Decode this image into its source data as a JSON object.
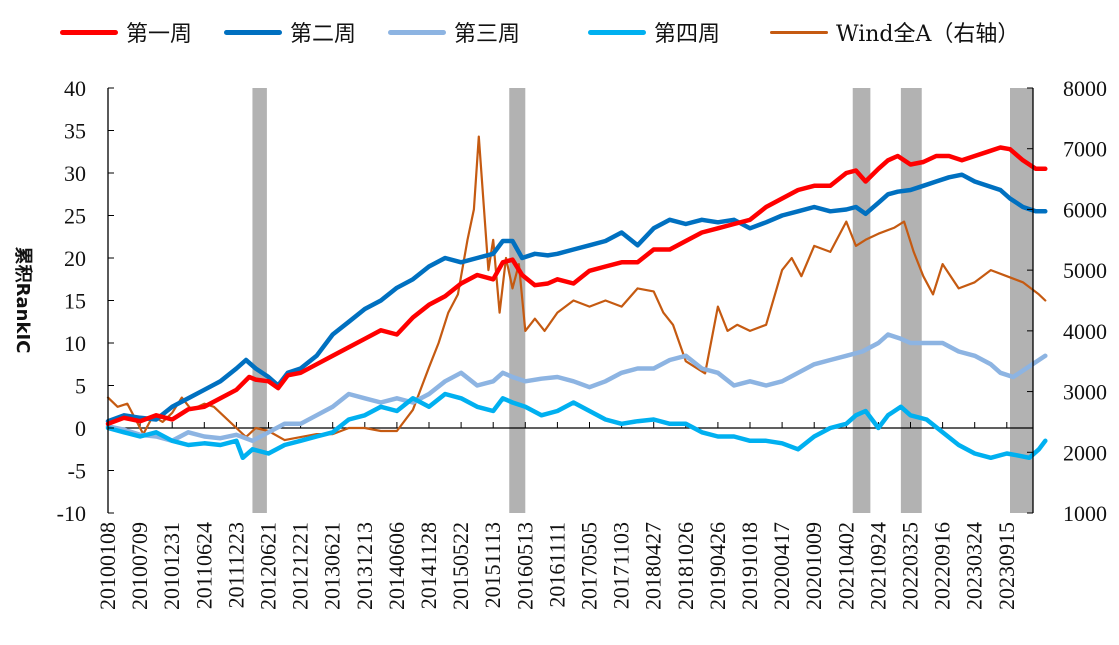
{
  "chart_data": {
    "type": "line",
    "title": "",
    "xlabel": "",
    "ylabel": "累积RankIC",
    "y2label": "",
    "ylim": [
      -10,
      40
    ],
    "y2lim": [
      1000,
      8000
    ],
    "yticks": [
      "40",
      "35",
      "30",
      "25",
      "20",
      "15",
      "10",
      "5",
      "0",
      "-5",
      "-10"
    ],
    "y2ticks": [
      "8000",
      "7000",
      "6000",
      "5000",
      "4000",
      "3000",
      "2000",
      "1000"
    ],
    "categories": [
      "20100108",
      "20100709",
      "20101231",
      "20110624",
      "20111223",
      "20120621",
      "20121221",
      "20130621",
      "20131213",
      "20140606",
      "20141128",
      "20150522",
      "20151113",
      "20160513",
      "20161111",
      "20170505",
      "20171103",
      "20180427",
      "20181026",
      "20190426",
      "20191018",
      "20200417",
      "20201009",
      "20210402",
      "20210924",
      "20220325",
      "20220916",
      "20230324",
      "20230915"
    ],
    "legend_position": "top",
    "grid": false,
    "shaded_periods": [
      {
        "start_index": 4.5,
        "end_index": 4.95
      },
      {
        "start_index": 12.5,
        "end_index": 13.0
      },
      {
        "start_index": 23.2,
        "end_index": 23.75
      },
      {
        "start_index": 24.7,
        "end_index": 25.35
      },
      {
        "start_index": 28.1,
        "end_index": 29.0
      }
    ],
    "shade_color": "#b2b2b2",
    "series": [
      {
        "name": "第一周",
        "axis": "left",
        "color": "#ff0000",
        "x": [
          0,
          0.5,
          1,
          1.5,
          2,
          2.5,
          3,
          3.5,
          4,
          4.4,
          4.6,
          5,
          5.3,
          5.6,
          6,
          6.5,
          7,
          7.5,
          8,
          8.5,
          9,
          9.5,
          10,
          10.5,
          11,
          11.5,
          12,
          12.3,
          12.6,
          12.9,
          13.3,
          13.7,
          14,
          14.5,
          15,
          15.5,
          16,
          16.5,
          17,
          17.5,
          18,
          18.5,
          19,
          19.5,
          20,
          20.5,
          21,
          21.5,
          22,
          22.5,
          23,
          23.3,
          23.6,
          24,
          24.3,
          24.6,
          25,
          25.4,
          25.8,
          26.2,
          26.6,
          27,
          27.4,
          27.8,
          28.1,
          28.5,
          28.9,
          29.2
        ],
        "values": [
          0.5,
          1.2,
          0.8,
          1.5,
          1.0,
          2.2,
          2.5,
          3.5,
          4.5,
          6.0,
          5.7,
          5.5,
          4.7,
          6.2,
          6.5,
          7.5,
          8.5,
          9.5,
          10.5,
          11.5,
          11.0,
          13.0,
          14.5,
          15.5,
          17.0,
          18.0,
          17.5,
          19.5,
          19.8,
          18.0,
          16.8,
          17.0,
          17.5,
          17.0,
          18.5,
          19.0,
          19.5,
          19.5,
          21.0,
          21.0,
          22.0,
          23.0,
          23.5,
          24.0,
          24.5,
          26.0,
          27.0,
          28.0,
          28.5,
          28.5,
          30.0,
          30.3,
          29.0,
          30.5,
          31.5,
          32.0,
          31.0,
          31.3,
          32.0,
          32.0,
          31.5,
          32.0,
          32.5,
          33.0,
          32.8,
          31.5,
          30.5,
          30.5
        ]
      },
      {
        "name": "第二周",
        "axis": "left",
        "color": "#0070c0",
        "x": [
          0,
          0.5,
          1,
          1.5,
          2,
          2.5,
          3,
          3.5,
          4,
          4.3,
          4.6,
          5,
          5.3,
          5.6,
          6,
          6.5,
          7,
          7.5,
          8,
          8.5,
          9,
          9.5,
          10,
          10.5,
          11,
          11.5,
          12,
          12.3,
          12.6,
          12.9,
          13.3,
          13.7,
          14,
          14.5,
          15,
          15.5,
          16,
          16.5,
          17,
          17.5,
          18,
          18.5,
          19,
          19.5,
          20,
          20.5,
          21,
          21.5,
          22,
          22.5,
          23,
          23.3,
          23.6,
          24,
          24.3,
          24.6,
          25,
          25.4,
          25.8,
          26.2,
          26.6,
          27,
          27.4,
          27.8,
          28.1,
          28.5,
          28.9,
          29.2
        ],
        "values": [
          0.8,
          1.5,
          1.2,
          1.0,
          2.5,
          3.5,
          4.5,
          5.5,
          7.0,
          8.0,
          7.0,
          6.0,
          5.0,
          6.5,
          7.0,
          8.5,
          11.0,
          12.5,
          14.0,
          15.0,
          16.5,
          17.5,
          19.0,
          20.0,
          19.5,
          20.0,
          20.5,
          22.0,
          22.0,
          20.0,
          20.5,
          20.3,
          20.5,
          21.0,
          21.5,
          22.0,
          23.0,
          21.5,
          23.5,
          24.5,
          24.0,
          24.5,
          24.2,
          24.5,
          23.5,
          24.2,
          25.0,
          25.5,
          26.0,
          25.5,
          25.7,
          26.0,
          25.2,
          26.5,
          27.5,
          27.8,
          28.0,
          28.5,
          29.0,
          29.5,
          29.8,
          29.0,
          28.5,
          28.0,
          27.0,
          26.0,
          25.5,
          25.5
        ]
      },
      {
        "name": "第三周",
        "axis": "left",
        "color": "#8db4e2",
        "x": [
          0,
          0.5,
          1,
          1.5,
          2,
          2.5,
          3,
          3.5,
          4,
          4.5,
          5,
          5.5,
          6,
          6.5,
          7,
          7.5,
          8,
          8.5,
          9,
          9.5,
          10,
          10.5,
          11,
          11.5,
          12,
          12.3,
          12.6,
          13,
          13.5,
          14,
          14.5,
          15,
          15.5,
          16,
          16.5,
          17,
          17.5,
          18,
          18.5,
          19,
          19.5,
          20,
          20.5,
          21,
          21.5,
          22,
          22.5,
          23,
          23.5,
          24,
          24.3,
          24.7,
          25,
          25.5,
          26,
          26.5,
          27,
          27.5,
          27.8,
          28.2,
          28.6,
          29.2
        ],
        "values": [
          0.2,
          -0.2,
          -0.8,
          -1.0,
          -1.5,
          -0.5,
          -1.0,
          -1.2,
          -0.8,
          -1.5,
          -0.5,
          0.5,
          0.5,
          1.5,
          2.5,
          4.0,
          3.5,
          3.0,
          3.5,
          3.0,
          4.0,
          5.5,
          6.5,
          5.0,
          5.5,
          6.5,
          6.0,
          5.5,
          5.8,
          6.0,
          5.5,
          4.8,
          5.5,
          6.5,
          7.0,
          7.0,
          8.0,
          8.5,
          7.0,
          6.5,
          5.0,
          5.5,
          5.0,
          5.5,
          6.5,
          7.5,
          8.0,
          8.5,
          9.0,
          10.0,
          11.0,
          10.5,
          10.0,
          10.0,
          10.0,
          9.0,
          8.5,
          7.5,
          6.5,
          6.0,
          7.0,
          8.5
        ]
      },
      {
        "name": "第四周",
        "axis": "left",
        "color": "#00b0f0",
        "x": [
          0,
          0.5,
          1,
          1.5,
          2,
          2.5,
          3,
          3.5,
          4,
          4.2,
          4.5,
          5,
          5.5,
          6,
          6.5,
          7,
          7.5,
          8,
          8.5,
          9,
          9.5,
          10,
          10.5,
          11,
          11.5,
          12,
          12.3,
          12.6,
          13,
          13.5,
          14,
          14.5,
          15,
          15.5,
          16,
          16.5,
          17,
          17.5,
          18,
          18.5,
          19,
          19.5,
          20,
          20.5,
          21,
          21.5,
          22,
          22.5,
          23,
          23.3,
          23.6,
          24,
          24.3,
          24.7,
          25,
          25.5,
          26,
          26.5,
          27,
          27.5,
          28,
          28.3,
          28.7,
          29.0,
          29.2
        ],
        "values": [
          0,
          -0.5,
          -1.0,
          -0.5,
          -1.5,
          -2.0,
          -1.8,
          -2.0,
          -1.5,
          -3.5,
          -2.5,
          -3.0,
          -2.0,
          -1.5,
          -1.0,
          -0.5,
          1.0,
          1.5,
          2.5,
          2.0,
          3.5,
          2.5,
          4.0,
          3.5,
          2.5,
          2.0,
          3.5,
          3.0,
          2.5,
          1.5,
          2.0,
          3.0,
          2.0,
          1.0,
          0.5,
          0.8,
          1.0,
          0.5,
          0.5,
          -0.5,
          -1.0,
          -1.0,
          -1.5,
          -1.5,
          -1.8,
          -2.5,
          -1.0,
          0.0,
          0.5,
          1.5,
          2.0,
          0.0,
          1.5,
          2.5,
          1.5,
          1.0,
          -0.5,
          -2.0,
          -3.0,
          -3.5,
          -3.0,
          -3.2,
          -3.5,
          -2.5,
          -1.5
        ]
      },
      {
        "name": "Wind全A（右轴）",
        "axis": "right",
        "color": "#c55a11",
        "x": [
          0,
          0.3,
          0.6,
          0.9,
          1.1,
          1.4,
          1.7,
          2.0,
          2.3,
          2.6,
          3.0,
          3.3,
          3.6,
          4.0,
          4.3,
          4.6,
          5.0,
          5.5,
          6.0,
          6.5,
          7.0,
          7.5,
          8.0,
          8.5,
          9.0,
          9.5,
          10.0,
          10.3,
          10.6,
          10.9,
          11.2,
          11.4,
          11.55,
          11.7,
          11.85,
          12.0,
          12.2,
          12.4,
          12.6,
          12.8,
          13.0,
          13.3,
          13.6,
          14.0,
          14.5,
          15.0,
          15.5,
          16.0,
          16.5,
          17.0,
          17.3,
          17.6,
          18.0,
          18.3,
          18.6,
          19.0,
          19.3,
          19.6,
          20.0,
          20.5,
          21.0,
          21.3,
          21.6,
          22.0,
          22.5,
          23.0,
          23.3,
          23.6,
          24.0,
          24.5,
          24.8,
          25.1,
          25.4,
          25.7,
          26.0,
          26.5,
          27.0,
          27.5,
          28.0,
          28.5,
          29.0,
          29.2
        ],
        "values": [
          2900,
          2750,
          2800,
          2500,
          2300,
          2600,
          2500,
          2650,
          2900,
          2700,
          2800,
          2750,
          2600,
          2400,
          2250,
          2400,
          2350,
          2200,
          2250,
          2300,
          2300,
          2400,
          2400,
          2350,
          2350,
          2700,
          3400,
          3800,
          4300,
          4600,
          5500,
          6000,
          7200,
          6100,
          5000,
          5500,
          4300,
          5200,
          4700,
          5100,
          4000,
          4200,
          4000,
          4300,
          4500,
          4400,
          4500,
          4400,
          4700,
          4650,
          4300,
          4100,
          3500,
          3400,
          3300,
          4400,
          4000,
          4100,
          4000,
          4100,
          5000,
          5200,
          4900,
          5400,
          5300,
          5800,
          5400,
          5500,
          5600,
          5700,
          5800,
          5300,
          4900,
          4600,
          5100,
          4700,
          4800,
          5000,
          4900,
          4800,
          4600,
          4500
        ]
      }
    ]
  },
  "legend": [
    {
      "label": "第一周",
      "color": "#ff0000"
    },
    {
      "label": "第二周",
      "color": "#0070c0"
    },
    {
      "label": "第三周",
      "color": "#8db4e2"
    },
    {
      "label": "第四周",
      "color": "#00b0f0"
    },
    {
      "label": "Wind全A（右轴）",
      "color": "#c55a11"
    }
  ]
}
